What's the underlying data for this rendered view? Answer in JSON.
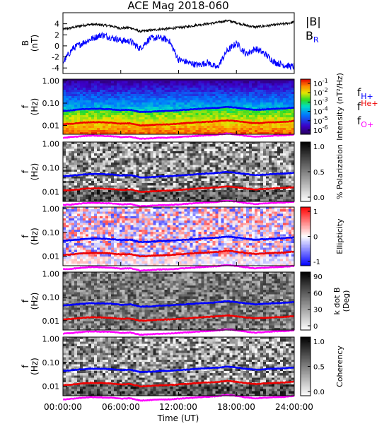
{
  "title": "ACE Mag 2018-060",
  "x_axis": {
    "label": "Time (UT)",
    "ticks": [
      "00:00:00",
      "06:00:00",
      "12:00:00",
      "18:00:00",
      "24:00:00"
    ],
    "range_hours": [
      0,
      24
    ]
  },
  "chart_data": [
    {
      "type": "line",
      "panel": "field",
      "ylabel": "B (nT)",
      "ylabel_main": "B",
      "ylabel_unit": "(nT)",
      "ylim": [
        -5,
        6
      ],
      "yticks": [
        "4",
        "2",
        "0",
        "-2",
        "-4"
      ],
      "yticks_values": [
        4,
        2,
        0,
        -2,
        -4
      ],
      "legend": [
        "|B|",
        "B",
        "R"
      ],
      "colors": {
        "absB": "#000000",
        "BR": "#0000ff"
      },
      "x_hours": [
        0,
        1,
        2,
        3,
        4,
        5,
        6,
        7,
        8,
        9,
        10,
        11,
        12,
        13,
        14,
        15,
        16,
        17,
        18,
        19,
        20,
        21,
        22,
        23,
        24
      ],
      "series": [
        {
          "name": "|B|",
          "values": [
            3.0,
            3.3,
            3.7,
            3.9,
            3.8,
            3.6,
            3.2,
            3.3,
            2.6,
            2.8,
            3.0,
            3.1,
            3.3,
            3.5,
            3.8,
            4.0,
            4.2,
            4.6,
            4.2,
            3.7,
            3.4,
            3.6,
            3.8,
            4.0,
            4.3
          ]
        },
        {
          "name": "B_R",
          "values": [
            -3.0,
            -0.5,
            0.5,
            1.3,
            2.0,
            1.5,
            1.0,
            0.8,
            -0.5,
            1.3,
            1.5,
            1.0,
            -2.5,
            -3.0,
            -3.5,
            -3.0,
            -4.0,
            -1.0,
            0.5,
            -1.5,
            -0.5,
            -1.5,
            -3.0,
            -3.5,
            -3.8
          ]
        }
      ]
    },
    {
      "type": "heatmap",
      "panel": "intensity",
      "ylabel_main": "f",
      "ylabel_unit": "(Hz)",
      "yscale": "log",
      "ylim": [
        0.004,
        1.2
      ],
      "yticks": [
        "1.00",
        "0.10",
        "0.01"
      ],
      "yticks_values": [
        1,
        0.1,
        0.01
      ],
      "colorbar": {
        "label": "Intensity (nT²/Hz)",
        "ticks": [
          {
            "base": "10",
            "exp": "-1"
          },
          {
            "base": "10",
            "exp": "-2"
          },
          {
            "base": "10",
            "exp": "-3"
          },
          {
            "base": "10",
            "exp": "-4"
          },
          {
            "base": "10",
            "exp": "-5"
          },
          {
            "base": "10",
            "exp": "-6"
          }
        ],
        "scale": "rainbow"
      },
      "legend": [
        {
          "main": "f",
          "sub": "H+",
          "color": "#0000ff"
        },
        {
          "main": "f",
          "sup": "He+",
          "color": "#ee0000"
        },
        {
          "main": "f",
          "sub": "O+",
          "color": "#ff00ff"
        }
      ]
    },
    {
      "type": "heatmap",
      "panel": "polarization",
      "ylabel_main": "f",
      "ylabel_unit": "(Hz)",
      "yscale": "log",
      "ylim": [
        0.004,
        1.2
      ],
      "yticks": [
        "1.00",
        "0.10",
        "0.01"
      ],
      "yticks_values": [
        1,
        0.1,
        0.01
      ],
      "colorbar": {
        "label": "% Polarization",
        "ticks": [
          "1.0",
          "0.5",
          "0.0"
        ],
        "scale": "gray"
      }
    },
    {
      "type": "heatmap",
      "panel": "ellipticity",
      "ylabel_main": "f",
      "ylabel_unit": "(Hz)",
      "yscale": "log",
      "ylim": [
        0.004,
        1.2
      ],
      "yticks": [
        "1.00",
        "0.10",
        "0.01"
      ],
      "yticks_values": [
        1,
        0.1,
        0.01
      ],
      "colorbar": {
        "label": "Ellipticity",
        "ticks": [
          "1",
          "0",
          "-1"
        ],
        "scale": "bwr"
      }
    },
    {
      "type": "heatmap",
      "panel": "kdotb",
      "ylabel_main": "f",
      "ylabel_unit": "(Hz)",
      "yscale": "log",
      "ylim": [
        0.004,
        1.2
      ],
      "yticks": [
        "1.00",
        "0.10",
        "0.01"
      ],
      "yticks_values": [
        1,
        0.1,
        0.01
      ],
      "colorbar": {
        "label": "k dot B",
        "label2": "(Deg)",
        "ticks": [
          "90",
          "60",
          "30",
          "0"
        ],
        "scale": "gray"
      }
    },
    {
      "type": "heatmap",
      "panel": "coherency",
      "ylabel_main": "f",
      "ylabel_unit": "(Hz)",
      "yscale": "log",
      "ylim": [
        0.004,
        1.2
      ],
      "yticks": [
        "1.00",
        "0.10",
        "0.01"
      ],
      "yticks_values": [
        1,
        0.1,
        0.01
      ],
      "colorbar": {
        "label": "Coherency",
        "ticks": [
          "1.0",
          "0.5",
          "0.0"
        ],
        "scale": "gray"
      }
    }
  ],
  "gyro_lines": {
    "x_hours": [
      0,
      1,
      2,
      3,
      4,
      5,
      6,
      7,
      8,
      9,
      10,
      11,
      12,
      13,
      14,
      15,
      16,
      17,
      18,
      19,
      20,
      21,
      22,
      23,
      24
    ],
    "fH": [
      0.045,
      0.048,
      0.053,
      0.056,
      0.055,
      0.053,
      0.048,
      0.05,
      0.04,
      0.041,
      0.044,
      0.045,
      0.048,
      0.051,
      0.055,
      0.058,
      0.061,
      0.068,
      0.062,
      0.055,
      0.05,
      0.053,
      0.056,
      0.058,
      0.063
    ],
    "fHe": [
      0.0113,
      0.012,
      0.0133,
      0.014,
      0.0138,
      0.0133,
      0.012,
      0.0125,
      0.01,
      0.0103,
      0.011,
      0.0113,
      0.012,
      0.0128,
      0.0138,
      0.0145,
      0.0153,
      0.017,
      0.0155,
      0.0138,
      0.0125,
      0.0133,
      0.014,
      0.0145,
      0.0158
    ],
    "fO": [
      0.0028,
      0.003,
      0.0033,
      0.0035,
      0.0034,
      0.0033,
      0.003,
      0.0031,
      0.0025,
      0.0026,
      0.0028,
      0.0028,
      0.003,
      0.0032,
      0.0034,
      0.0036,
      0.0038,
      0.0043,
      0.0039,
      0.0034,
      0.0031,
      0.0033,
      0.0035,
      0.0036,
      0.0039
    ]
  }
}
